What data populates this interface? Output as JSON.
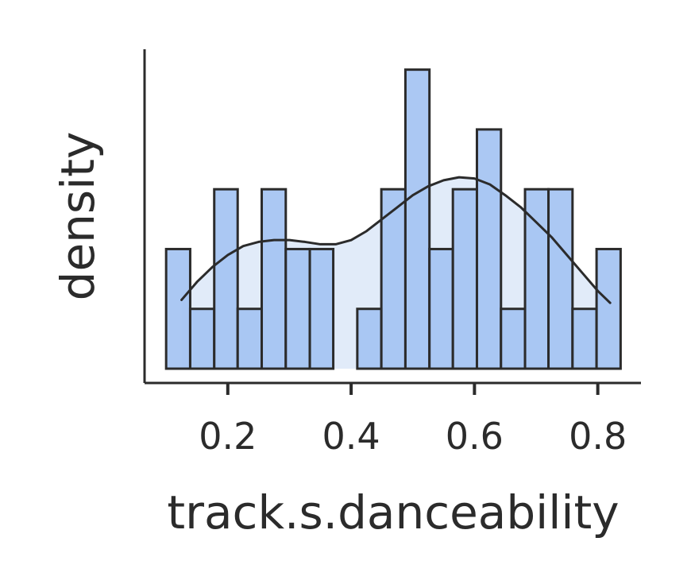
{
  "chart_data": {
    "type": "histogram",
    "xlabel": "track.s.danceability",
    "ylabel": "density",
    "x_ticks": [
      "0.2",
      "0.4",
      "0.6",
      "0.8"
    ],
    "x_tick_values": [
      0.2,
      0.4,
      0.6,
      0.8
    ],
    "xlim": [
      0.065,
      0.87
    ],
    "ylim": [
      0,
      5.5
    ],
    "bins": [
      {
        "x0": 0.1,
        "x1": 0.139,
        "count": 2
      },
      {
        "x0": 0.139,
        "x1": 0.178,
        "count": 1
      },
      {
        "x0": 0.178,
        "x1": 0.216,
        "count": 3
      },
      {
        "x0": 0.216,
        "x1": 0.255,
        "count": 1
      },
      {
        "x0": 0.255,
        "x1": 0.294,
        "count": 3
      },
      {
        "x0": 0.294,
        "x1": 0.333,
        "count": 2
      },
      {
        "x0": 0.333,
        "x1": 0.371,
        "count": 2
      },
      {
        "x0": 0.371,
        "x1": 0.41,
        "count": 0
      },
      {
        "x0": 0.41,
        "x1": 0.449,
        "count": 1
      },
      {
        "x0": 0.449,
        "x1": 0.488,
        "count": 3
      },
      {
        "x0": 0.488,
        "x1": 0.527,
        "count": 5
      },
      {
        "x0": 0.527,
        "x1": 0.565,
        "count": 2
      },
      {
        "x0": 0.565,
        "x1": 0.604,
        "count": 3
      },
      {
        "x0": 0.604,
        "x1": 0.643,
        "count": 4
      },
      {
        "x0": 0.643,
        "x1": 0.682,
        "count": 1
      },
      {
        "x0": 0.682,
        "x1": 0.72,
        "count": 3
      },
      {
        "x0": 0.72,
        "x1": 0.759,
        "count": 3
      },
      {
        "x0": 0.759,
        "x1": 0.798,
        "count": 1
      },
      {
        "x0": 0.798,
        "x1": 0.837,
        "count": 2
      }
    ],
    "kde": {
      "x": [
        0.125,
        0.15,
        0.175,
        0.2,
        0.225,
        0.25,
        0.275,
        0.3,
        0.325,
        0.35,
        0.375,
        0.4,
        0.425,
        0.45,
        0.475,
        0.5,
        0.525,
        0.55,
        0.575,
        0.6,
        0.625,
        0.65,
        0.675,
        0.7,
        0.725,
        0.75,
        0.775,
        0.8,
        0.82
      ],
      "y": [
        1.15,
        1.45,
        1.7,
        1.9,
        2.05,
        2.12,
        2.15,
        2.15,
        2.12,
        2.08,
        2.08,
        2.15,
        2.3,
        2.5,
        2.7,
        2.9,
        3.05,
        3.15,
        3.2,
        3.18,
        3.08,
        2.9,
        2.7,
        2.45,
        2.2,
        1.9,
        1.6,
        1.3,
        1.1
      ]
    },
    "colors": {
      "bar_fill": "#a4c3f2",
      "bar_edge": "#2b2b2b",
      "kde_fill": "#dce7f8",
      "kde_line": "#2b2b2b",
      "axis": "#2b2b2b"
    },
    "grid": false,
    "legend": "none"
  }
}
